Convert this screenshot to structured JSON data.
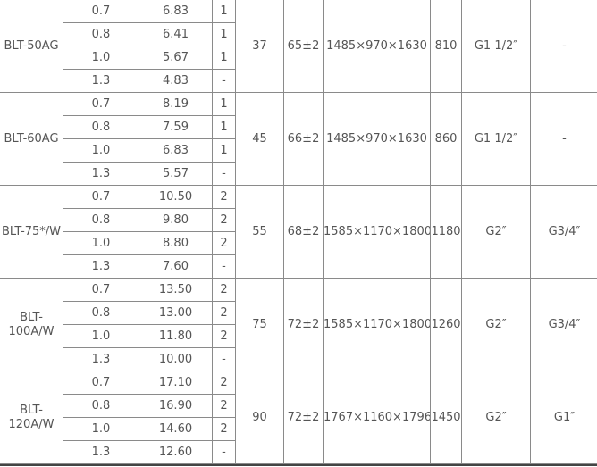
{
  "table": {
    "groups": [
      {
        "model": "BLT-50AG",
        "rows": [
          [
            "0.7",
            "6.83",
            "1"
          ],
          [
            "0.8",
            "6.41",
            "1"
          ],
          [
            "1.0",
            "5.67",
            "1"
          ],
          [
            "1.3",
            "4.83",
            "-"
          ]
        ],
        "power": "37",
        "noise": "65±2",
        "dimensions": "1485×970×1630",
        "weight": "810",
        "inlet": "G1 1/2″",
        "outlet": "-"
      },
      {
        "model": "BLT-60AG",
        "rows": [
          [
            "0.7",
            "8.19",
            "1"
          ],
          [
            "0.8",
            "7.59",
            "1"
          ],
          [
            "1.0",
            "6.83",
            "1"
          ],
          [
            "1.3",
            "5.57",
            "-"
          ]
        ],
        "power": "45",
        "noise": "66±2",
        "dimensions": "1485×970×1630",
        "weight": "860",
        "inlet": "G1 1/2″",
        "outlet": "-"
      },
      {
        "model": "BLT-75*/W",
        "rows": [
          [
            "0.7",
            "10.50",
            "2"
          ],
          [
            "0.8",
            "9.80",
            "2"
          ],
          [
            "1.0",
            "8.80",
            "2"
          ],
          [
            "1.3",
            "7.60",
            "-"
          ]
        ],
        "power": "55",
        "noise": "68±2",
        "dimensions": "1585×1170×1800",
        "weight": "1180",
        "inlet": "G2″",
        "outlet": "G3/4″"
      },
      {
        "model": "BLT-100A/W",
        "rows": [
          [
            "0.7",
            "13.50",
            "2"
          ],
          [
            "0.8",
            "13.00",
            "2"
          ],
          [
            "1.0",
            "11.80",
            "2"
          ],
          [
            "1.3",
            "10.00",
            "-"
          ]
        ],
        "power": "75",
        "noise": "72±2",
        "dimensions": "1585×1170×1800",
        "weight": "1260",
        "inlet": "G2″",
        "outlet": "G3/4″"
      },
      {
        "model": "BLT-120A/W",
        "rows": [
          [
            "0.7",
            "17.10",
            "2"
          ],
          [
            "0.8",
            "16.90",
            "2"
          ],
          [
            "1.0",
            "14.60",
            "2"
          ],
          [
            "1.3",
            "12.60",
            "-"
          ]
        ],
        "power": "90",
        "noise": "72±2",
        "dimensions": "1767×1160×1796",
        "weight": "1450",
        "inlet": "G2″",
        "outlet": "G1″"
      }
    ]
  }
}
